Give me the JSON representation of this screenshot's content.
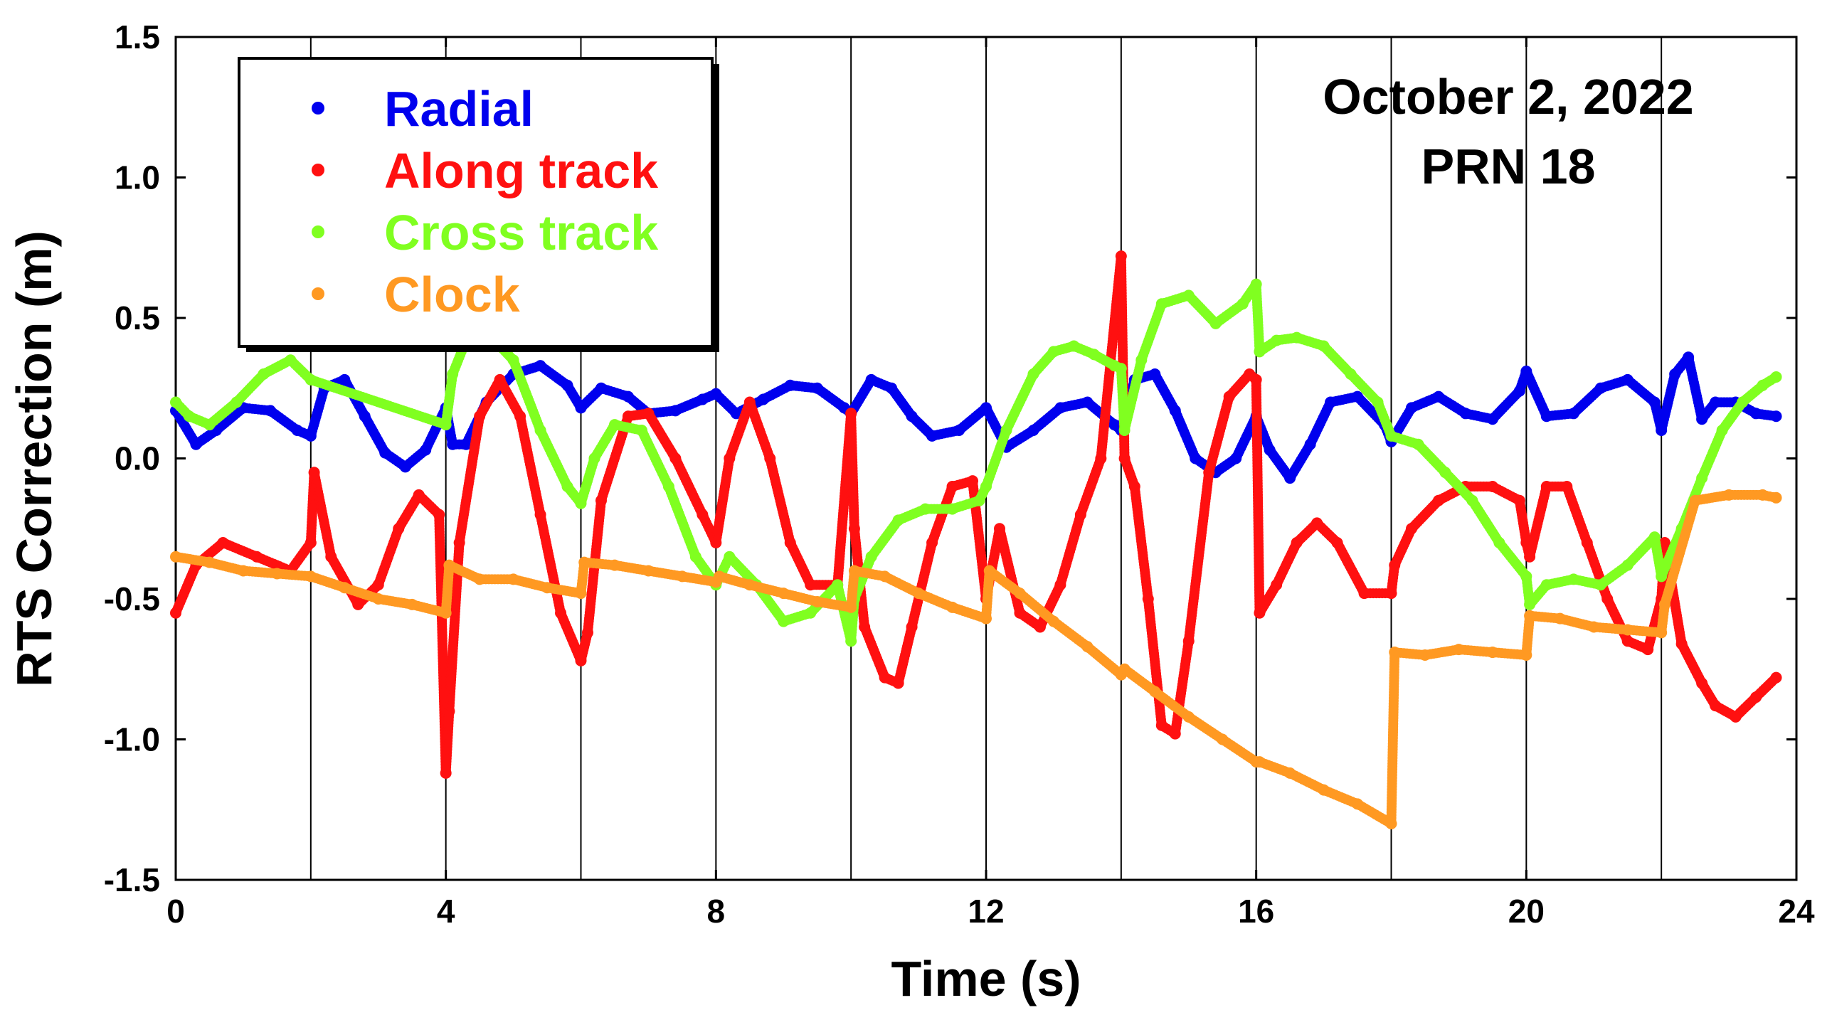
{
  "chart_data": {
    "type": "scatter",
    "title": "",
    "xlabel": "Time (s)",
    "ylabel": "RTS Correction (m)",
    "xlim": [
      0,
      24
    ],
    "ylim": [
      -1.5,
      1.5
    ],
    "x_ticks": [
      0,
      4,
      8,
      12,
      16,
      20,
      24
    ],
    "x_tick_labels": [
      "0",
      "4",
      "8",
      "12",
      "16",
      "20",
      "24"
    ],
    "y_ticks": [
      1.5,
      1.0,
      0.5,
      0.0,
      -0.5,
      -1.0,
      -1.5
    ],
    "y_tick_labels": [
      "1.5",
      "1.0",
      "0.5",
      "0.0",
      "-0.5",
      "-1.0",
      "-1.5"
    ],
    "vertical_gridlines_x": [
      2,
      4,
      6,
      8,
      10,
      12,
      14,
      16,
      18,
      20,
      22
    ],
    "legend_position": "top-left",
    "annotations": [
      "October 2, 2022",
      "PRN 18"
    ],
    "series": [
      {
        "name": "Radial",
        "color": "#0000ee",
        "x": [
          0,
          0.3,
          0.6,
          1.0,
          1.4,
          1.8,
          2.0,
          2.2,
          2.5,
          2.8,
          3.1,
          3.4,
          3.7,
          4.0,
          4.1,
          4.3,
          4.6,
          5.0,
          5.4,
          5.8,
          6.0,
          6.3,
          6.7,
          7.0,
          7.4,
          7.8,
          8.0,
          8.3,
          8.7,
          9.1,
          9.5,
          9.9,
          10.0,
          10.3,
          10.6,
          10.9,
          11.2,
          11.6,
          12.0,
          12.3,
          12.7,
          13.1,
          13.5,
          13.9,
          14.0,
          14.2,
          14.5,
          14.8,
          15.1,
          15.4,
          15.7,
          16.0,
          16.2,
          16.5,
          16.8,
          17.1,
          17.5,
          17.9,
          18.0,
          18.3,
          18.7,
          19.1,
          19.5,
          19.9,
          20.0,
          20.3,
          20.7,
          21.1,
          21.5,
          21.9,
          22.0,
          22.2,
          22.4,
          22.6,
          22.8,
          23.1,
          23.4,
          23.7
        ],
        "y": [
          0.17,
          0.05,
          0.1,
          0.18,
          0.17,
          0.1,
          0.08,
          0.25,
          0.28,
          0.15,
          0.02,
          -0.03,
          0.03,
          0.18,
          0.05,
          0.05,
          0.2,
          0.3,
          0.33,
          0.26,
          0.18,
          0.25,
          0.22,
          0.16,
          0.17,
          0.21,
          0.23,
          0.16,
          0.21,
          0.26,
          0.25,
          0.18,
          0.16,
          0.28,
          0.25,
          0.15,
          0.08,
          0.1,
          0.18,
          0.04,
          0.1,
          0.18,
          0.2,
          0.12,
          0.1,
          0.28,
          0.3,
          0.17,
          0.0,
          -0.05,
          0.0,
          0.15,
          0.03,
          -0.07,
          0.05,
          0.2,
          0.22,
          0.12,
          0.06,
          0.18,
          0.22,
          0.16,
          0.14,
          0.24,
          0.31,
          0.15,
          0.16,
          0.25,
          0.28,
          0.2,
          0.1,
          0.3,
          0.36,
          0.14,
          0.2,
          0.2,
          0.16,
          0.15
        ]
      },
      {
        "name": "Along track",
        "color": "#ff1010",
        "x": [
          0,
          0.3,
          0.7,
          1.2,
          1.7,
          2.0,
          2.05,
          2.3,
          2.7,
          3.0,
          3.3,
          3.6,
          3.9,
          4.0,
          4.05,
          4.2,
          4.5,
          4.8,
          5.1,
          5.4,
          5.7,
          6.0,
          6.1,
          6.3,
          6.7,
          7.0,
          7.4,
          7.8,
          8.0,
          8.2,
          8.5,
          8.8,
          9.1,
          9.4,
          9.8,
          10.0,
          10.05,
          10.2,
          10.5,
          10.7,
          10.9,
          11.2,
          11.5,
          11.8,
          12.0,
          12.2,
          12.5,
          12.8,
          13.1,
          13.4,
          13.7,
          14.0,
          14.05,
          14.2,
          14.4,
          14.6,
          14.8,
          15.0,
          15.3,
          15.6,
          15.9,
          16.0,
          16.05,
          16.3,
          16.6,
          16.9,
          17.2,
          17.6,
          18.0,
          18.05,
          18.3,
          18.7,
          19.1,
          19.5,
          19.9,
          20.0,
          20.05,
          20.3,
          20.6,
          20.9,
          21.2,
          21.5,
          21.8,
          22.0,
          22.05,
          22.3,
          22.6,
          22.8,
          23.1,
          23.4,
          23.7
        ],
        "y": [
          -0.55,
          -0.38,
          -0.3,
          -0.35,
          -0.4,
          -0.3,
          -0.05,
          -0.35,
          -0.52,
          -0.45,
          -0.25,
          -0.13,
          -0.2,
          -1.12,
          -0.9,
          -0.3,
          0.15,
          0.28,
          0.15,
          -0.2,
          -0.55,
          -0.72,
          -0.62,
          -0.15,
          0.15,
          0.16,
          0.0,
          -0.2,
          -0.3,
          0.0,
          0.2,
          0.0,
          -0.3,
          -0.45,
          -0.45,
          0.16,
          -0.25,
          -0.6,
          -0.78,
          -0.8,
          -0.6,
          -0.3,
          -0.1,
          -0.08,
          -0.5,
          -0.25,
          -0.55,
          -0.6,
          -0.45,
          -0.2,
          0.0,
          0.72,
          0.0,
          -0.1,
          -0.5,
          -0.95,
          -0.98,
          -0.65,
          -0.05,
          0.22,
          0.3,
          0.28,
          -0.55,
          -0.45,
          -0.3,
          -0.23,
          -0.3,
          -0.48,
          -0.48,
          -0.38,
          -0.25,
          -0.15,
          -0.1,
          -0.1,
          -0.15,
          -0.3,
          -0.35,
          -0.1,
          -0.1,
          -0.3,
          -0.5,
          -0.65,
          -0.68,
          -0.5,
          -0.3,
          -0.66,
          -0.8,
          -0.88,
          -0.92,
          -0.85,
          -0.78
        ]
      },
      {
        "name": "Cross track",
        "color": "#80ff20",
        "x": [
          0,
          0.2,
          0.5,
          0.9,
          1.3,
          1.7,
          2.0,
          4.0,
          4.1,
          4.3,
          4.6,
          5.0,
          5.4,
          5.8,
          6.0,
          6.2,
          6.5,
          6.9,
          7.3,
          7.7,
          8.0,
          8.2,
          8.6,
          9.0,
          9.4,
          9.8,
          10.0,
          10.05,
          10.3,
          10.7,
          11.1,
          11.5,
          11.9,
          12.0,
          12.3,
          12.7,
          13.0,
          13.3,
          13.6,
          13.9,
          14.0,
          14.05,
          14.3,
          14.6,
          15.0,
          15.4,
          15.8,
          16.0,
          16.05,
          16.3,
          16.6,
          17.0,
          17.4,
          17.8,
          18.0,
          18.4,
          18.8,
          19.2,
          19.6,
          20.0,
          20.05,
          20.3,
          20.7,
          21.1,
          21.5,
          21.9,
          22.0,
          22.3,
          22.6,
          22.9,
          23.2,
          23.5,
          23.7
        ],
        "y": [
          0.2,
          0.15,
          0.12,
          0.2,
          0.3,
          0.35,
          0.28,
          0.12,
          0.3,
          0.42,
          0.45,
          0.35,
          0.1,
          -0.1,
          -0.16,
          0.0,
          0.12,
          0.1,
          -0.1,
          -0.35,
          -0.45,
          -0.35,
          -0.45,
          -0.58,
          -0.55,
          -0.45,
          -0.65,
          -0.5,
          -0.35,
          -0.22,
          -0.18,
          -0.18,
          -0.15,
          -0.1,
          0.1,
          0.3,
          0.38,
          0.4,
          0.37,
          0.33,
          0.32,
          0.1,
          0.35,
          0.55,
          0.58,
          0.48,
          0.55,
          0.62,
          0.38,
          0.42,
          0.43,
          0.4,
          0.3,
          0.2,
          0.08,
          0.05,
          -0.05,
          -0.15,
          -0.3,
          -0.42,
          -0.52,
          -0.45,
          -0.43,
          -0.45,
          -0.38,
          -0.28,
          -0.42,
          -0.25,
          -0.07,
          0.1,
          0.2,
          0.26,
          0.29
        ]
      },
      {
        "name": "Clock",
        "color": "#ff9922",
        "x": [
          0,
          0.5,
          1.0,
          1.5,
          2.0,
          2.5,
          3.0,
          3.5,
          4.0,
          4.05,
          4.5,
          5.0,
          5.5,
          6.0,
          6.05,
          6.5,
          7.0,
          7.5,
          8.0,
          8.05,
          8.5,
          9.0,
          9.5,
          10.0,
          10.05,
          10.5,
          11.0,
          11.5,
          12.0,
          12.05,
          12.5,
          13.0,
          13.5,
          14.0,
          14.05,
          14.5,
          15.0,
          15.5,
          16.0,
          16.05,
          16.5,
          17.0,
          17.5,
          18.0,
          18.05,
          18.5,
          19.0,
          19.5,
          20.0,
          20.05,
          20.5,
          21.0,
          21.5,
          22.0,
          22.05,
          22.5,
          23.0,
          23.5,
          23.7
        ],
        "y": [
          -0.35,
          -0.37,
          -0.4,
          -0.41,
          -0.42,
          -0.46,
          -0.5,
          -0.52,
          -0.55,
          -0.38,
          -0.43,
          -0.43,
          -0.46,
          -0.48,
          -0.37,
          -0.38,
          -0.4,
          -0.42,
          -0.44,
          -0.42,
          -0.45,
          -0.48,
          -0.51,
          -0.53,
          -0.4,
          -0.42,
          -0.48,
          -0.53,
          -0.57,
          -0.4,
          -0.48,
          -0.58,
          -0.67,
          -0.77,
          -0.75,
          -0.83,
          -0.92,
          -1.0,
          -1.08,
          -1.08,
          -1.12,
          -1.18,
          -1.23,
          -1.3,
          -0.69,
          -0.7,
          -0.68,
          -0.69,
          -0.7,
          -0.56,
          -0.57,
          -0.6,
          -0.61,
          -0.62,
          -0.52,
          -0.15,
          -0.13,
          -0.13,
          -0.14
        ]
      }
    ]
  }
}
